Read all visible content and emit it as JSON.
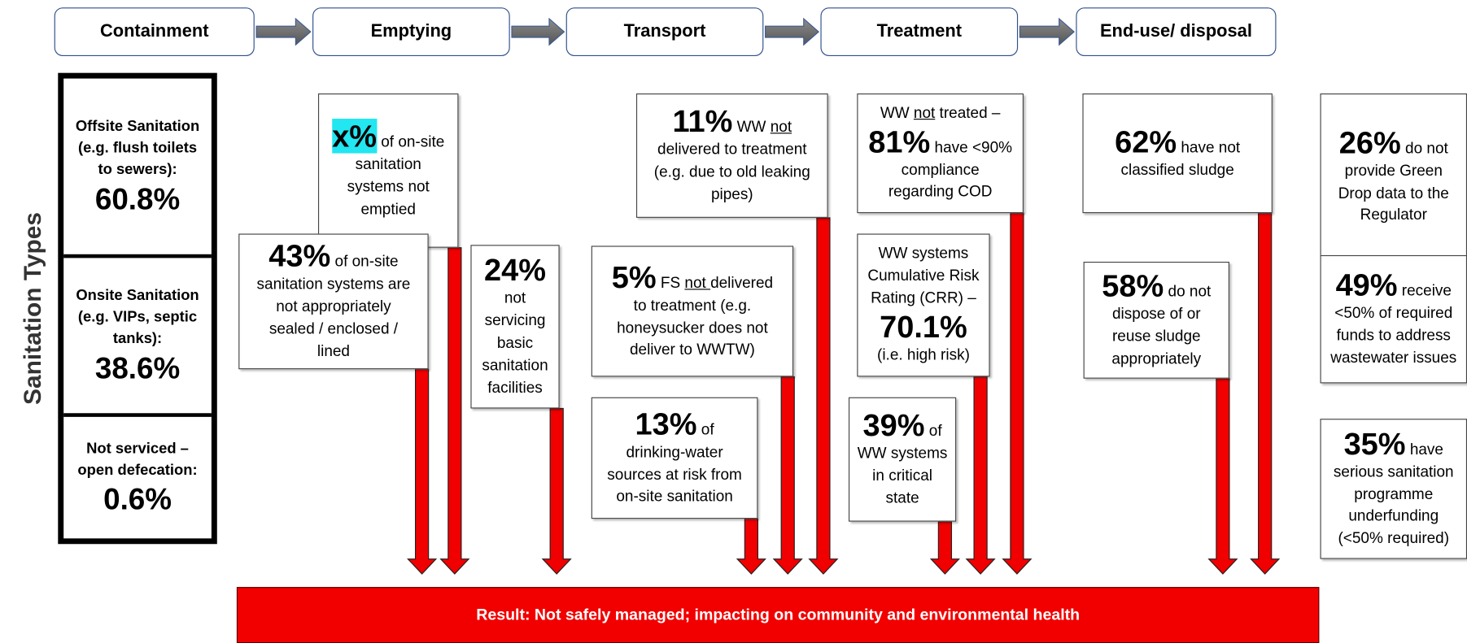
{
  "stages": [
    "Containment",
    "Emptying",
    "Transport",
    "Treatment",
    "End-use/ disposal"
  ],
  "side_label": "Sanitation Types",
  "types": [
    {
      "label": "Offsite Sanitation (e.g. flush toilets to sewers):",
      "value": "60.8%"
    },
    {
      "label": "Onsite Sanitation (e.g. VIPs, septic tanks):",
      "value": "38.6%"
    },
    {
      "label": "Not serviced – open defecation:",
      "value": "0.6%"
    }
  ],
  "boxes": [
    {
      "lines": [
        [
          {
            "text": "x%",
            "big": true,
            "highlight": true
          },
          {
            "text": " of on-site"
          }
        ],
        [
          {
            "text": "sanitation"
          }
        ],
        [
          {
            "text": "systems not"
          }
        ],
        [
          {
            "text": "emptied"
          }
        ]
      ]
    },
    {
      "lines": [
        [
          {
            "text": "43%",
            "big": true
          },
          {
            "text": " of on-site"
          }
        ],
        [
          {
            "text": "sanitation systems are"
          }
        ],
        [
          {
            "text": "not appropriately"
          }
        ],
        [
          {
            "text": "sealed / enclosed /"
          }
        ],
        [
          {
            "text": "lined"
          }
        ]
      ]
    },
    {
      "lines": [
        [
          {
            "text": "24%",
            "big": true
          }
        ],
        [
          {
            "text": "not"
          }
        ],
        [
          {
            "text": "servicing"
          }
        ],
        [
          {
            "text": "basic"
          }
        ],
        [
          {
            "text": "sanitation"
          }
        ],
        [
          {
            "text": "facilities"
          }
        ]
      ]
    },
    {
      "lines": [
        [
          {
            "text": "11%",
            "big": true
          },
          {
            "text": " WW "
          },
          {
            "text": "not",
            "underline": true
          }
        ],
        [
          {
            "text": "delivered to treatment"
          }
        ],
        [
          {
            "text": "(e.g. due to old leaking"
          }
        ],
        [
          {
            "text": "pipes)"
          }
        ]
      ]
    },
    {
      "lines": [
        [
          {
            "text": "5%",
            "big": true
          },
          {
            "text": " FS "
          },
          {
            "text": "not ",
            "underline": true
          },
          {
            "text": "delivered"
          }
        ],
        [
          {
            "text": "to treatment (e.g."
          }
        ],
        [
          {
            "text": "honeysucker does not"
          }
        ],
        [
          {
            "text": "deliver to WWTW)"
          }
        ]
      ]
    },
    {
      "lines": [
        [
          {
            "text": "13%",
            "big": true
          },
          {
            "text": " of"
          }
        ],
        [
          {
            "text": "drinking-water"
          }
        ],
        [
          {
            "text": "sources at risk from"
          }
        ],
        [
          {
            "text": "on-site sanitation"
          }
        ]
      ]
    },
    {
      "lines": [
        [
          {
            "text": "WW "
          },
          {
            "text": "not",
            "underline": true
          },
          {
            "text": " treated –"
          }
        ],
        [
          {
            "text": "81%",
            "big": true
          },
          {
            "text": " have <90%"
          }
        ],
        [
          {
            "text": "compliance"
          }
        ],
        [
          {
            "text": "regarding COD"
          }
        ]
      ]
    },
    {
      "lines": [
        [
          {
            "text": "WW systems"
          }
        ],
        [
          {
            "text": "Cumulative Risk"
          }
        ],
        [
          {
            "text": "Rating (CRR) –"
          }
        ],
        [
          {
            "text": "70.1%",
            "big": true
          }
        ],
        [
          {
            "text": "(i.e. high risk)"
          }
        ]
      ]
    },
    {
      "lines": [
        [
          {
            "text": "39%",
            "big": true
          },
          {
            "text": " of"
          }
        ],
        [
          {
            "text": "WW systems"
          }
        ],
        [
          {
            "text": "in critical"
          }
        ],
        [
          {
            "text": "state"
          }
        ]
      ]
    },
    {
      "lines": [
        [
          {
            "text": "62%",
            "big": true
          },
          {
            "text": " have not"
          }
        ],
        [
          {
            "text": "classified sludge"
          }
        ]
      ]
    },
    {
      "lines": [
        [
          {
            "text": "58%",
            "big": true
          },
          {
            "text": " do not"
          }
        ],
        [
          {
            "text": "dispose of or"
          }
        ],
        [
          {
            "text": "reuse sludge"
          }
        ],
        [
          {
            "text": "appropriately"
          }
        ]
      ]
    },
    {
      "lines": [
        [
          {
            "text": "26%",
            "big": true
          },
          {
            "text": " do not"
          }
        ],
        [
          {
            "text": "provide Green"
          }
        ],
        [
          {
            "text": "Drop data to the"
          }
        ],
        [
          {
            "text": "Regulator"
          }
        ]
      ]
    },
    {
      "lines": [
        [
          {
            "text": "49%",
            "big": true
          },
          {
            "text": " receive"
          }
        ],
        [
          {
            "text": "<50% of required"
          }
        ],
        [
          {
            "text": "funds to address"
          }
        ],
        [
          {
            "text": "wastewater issues"
          }
        ]
      ]
    },
    {
      "lines": [
        [
          {
            "text": "35%",
            "big": true
          },
          {
            "text": " have"
          }
        ],
        [
          {
            "text": "serious sanitation"
          }
        ],
        [
          {
            "text": "programme"
          }
        ],
        [
          {
            "text": "underfunding"
          }
        ],
        [
          {
            "text": "(<50% required)"
          }
        ]
      ]
    }
  ],
  "result": "Result: Not safely managed; impacting on community and environmental health"
}
